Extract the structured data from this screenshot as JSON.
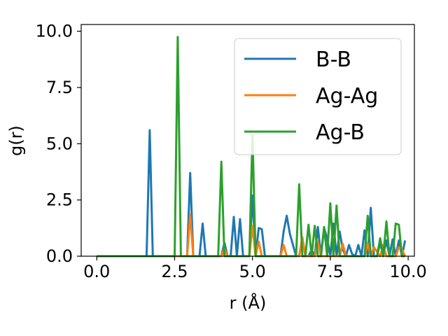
{
  "chart_data": {
    "type": "line",
    "title": "",
    "xlabel": "r (Å)",
    "ylabel": "g(r)",
    "xlim": [
      -0.5,
      10.2
    ],
    "ylim": [
      0.0,
      10.3
    ],
    "xticks": [
      0.0,
      2.5,
      5.0,
      7.5,
      10.0
    ],
    "xtick_labels": [
      "0.0",
      "2.5",
      "5.0",
      "7.5",
      "10.0"
    ],
    "yticks": [
      0.0,
      2.5,
      5.0,
      7.5,
      10.0
    ],
    "ytick_labels": [
      "0.0",
      "2.5",
      "5.0",
      "7.5",
      "10.0"
    ],
    "grid": false,
    "legend_position": "top-right",
    "series": [
      {
        "name": "B-B",
        "color": "#1f77b4",
        "x": [
          0.0,
          1.6,
          1.7,
          1.8,
          2.0,
          2.8,
          2.9,
          3.0,
          3.1,
          3.2,
          3.3,
          3.4,
          3.5,
          3.9,
          4.0,
          4.1,
          4.2,
          4.3,
          4.4,
          4.5,
          4.6,
          4.7,
          4.8,
          4.9,
          5.0,
          5.1,
          5.2,
          5.3,
          5.4,
          5.9,
          6.0,
          6.1,
          6.2,
          6.3,
          6.4,
          6.5,
          6.6,
          6.7,
          6.8,
          6.9,
          7.0,
          7.1,
          7.2,
          7.3,
          7.4,
          7.5,
          7.6,
          7.7,
          7.8,
          7.9,
          8.0,
          8.1,
          8.2,
          8.3,
          8.4,
          8.5,
          8.6,
          8.7,
          8.8,
          8.9,
          9.0,
          9.1,
          9.2,
          9.3,
          9.4,
          9.5,
          9.6,
          9.7,
          9.8,
          9.9
        ],
        "y": [
          0.0,
          0.0,
          5.6,
          0.0,
          0.0,
          0.0,
          0.0,
          3.7,
          0.0,
          0.0,
          0.0,
          1.45,
          0.0,
          0.0,
          0.0,
          0.6,
          0.0,
          0.0,
          1.75,
          0.0,
          1.65,
          0.0,
          0.0,
          0.0,
          2.7,
          0.0,
          1.25,
          1.2,
          0.0,
          0.0,
          1.1,
          1.8,
          1.0,
          0.5,
          0.0,
          0.0,
          0.8,
          0.0,
          0.0,
          0.3,
          0.0,
          1.3,
          0.0,
          1.25,
          0.8,
          0.0,
          1.45,
          0.0,
          1.1,
          0.3,
          0.0,
          0.5,
          0.1,
          0.0,
          0.5,
          0.0,
          1.15,
          0.0,
          2.15,
          0.0,
          0.0,
          0.6,
          0.0,
          0.7,
          0.0,
          0.75,
          0.0,
          0.7,
          0.0,
          0.7
        ]
      },
      {
        "name": "Ag-Ag",
        "color": "#ff7f0e",
        "x": [
          0.0,
          2.8,
          2.9,
          3.0,
          3.1,
          3.9,
          4.0,
          4.1,
          4.2,
          4.9,
          5.0,
          5.1,
          5.2,
          5.3,
          5.9,
          6.0,
          6.1,
          6.4,
          6.5,
          6.6,
          6.7,
          6.9,
          7.0,
          7.1,
          7.2,
          7.8,
          7.9,
          8.0,
          8.6,
          8.7,
          8.8,
          8.9,
          9.1,
          9.2,
          9.3,
          9.6,
          9.7,
          9.8,
          9.9
        ],
        "y": [
          0.0,
          0.0,
          0.0,
          1.85,
          0.0,
          0.0,
          0.0,
          0.35,
          0.0,
          0.0,
          1.35,
          0.0,
          0.65,
          0.0,
          0.0,
          0.5,
          0.0,
          0.0,
          0.0,
          0.85,
          0.0,
          0.0,
          0.0,
          0.65,
          0.0,
          0.0,
          0.55,
          0.0,
          0.0,
          0.55,
          0.0,
          0.4,
          0.0,
          0.5,
          0.0,
          0.0,
          0.4,
          0.3,
          0.0
        ]
      },
      {
        "name": "Ag-B",
        "color": "#2ca02c",
        "x": [
          0.0,
          2.5,
          2.6,
          2.7,
          3.8,
          3.9,
          4.0,
          4.1,
          4.2,
          4.8,
          4.9,
          5.0,
          5.1,
          5.2,
          5.3,
          6.4,
          6.5,
          6.6,
          6.7,
          6.8,
          6.9,
          7.0,
          7.1,
          7.2,
          7.3,
          7.4,
          7.5,
          7.6,
          7.7,
          7.8,
          7.9,
          8.0,
          8.6,
          8.7,
          8.8,
          8.9,
          9.0,
          9.1,
          9.2,
          9.3,
          9.4,
          9.5,
          9.6,
          9.7,
          9.8,
          9.9
        ],
        "y": [
          0.0,
          0.0,
          9.75,
          0.0,
          0.0,
          0.0,
          4.2,
          0.0,
          0.0,
          0.0,
          0.0,
          5.4,
          0.0,
          0.0,
          0.0,
          0.0,
          3.2,
          0.0,
          0.0,
          1.4,
          0.0,
          1.35,
          0.0,
          0.0,
          1.3,
          0.0,
          2.35,
          0.0,
          2.25,
          0.0,
          0.0,
          0.0,
          0.0,
          1.8,
          0.0,
          0.0,
          0.0,
          0.8,
          0.0,
          1.55,
          0.0,
          0.0,
          1.45,
          1.4,
          0.0,
          0.0
        ]
      }
    ]
  }
}
